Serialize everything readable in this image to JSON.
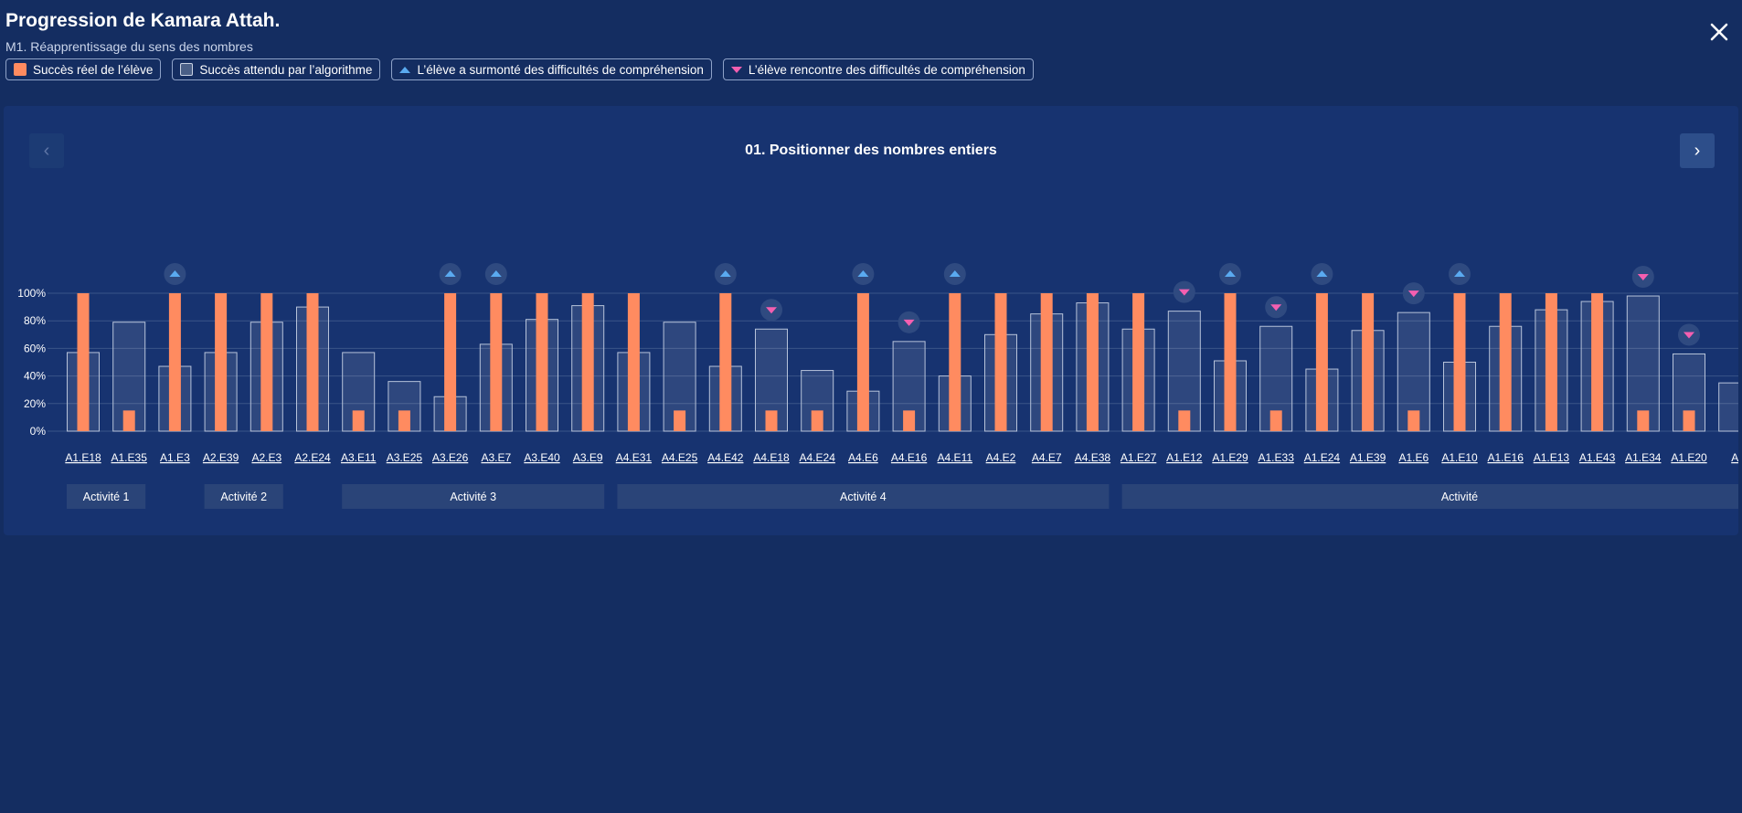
{
  "header": {
    "title": "Progression de Kamara Attah.",
    "subtitle": "M1. Réapprentissage du sens des nombres"
  },
  "legend": {
    "actual": "Succès réel de l’élève",
    "expected": "Succès attendu par l’algorithme",
    "overcame": "L’élève a surmonté des difficultés de compréhension",
    "struggling": "L’élève rencontre des difficultés de compréhension"
  },
  "panel": {
    "title": "01. Positionner des nombres entiers",
    "prev_icon": "chevron-left-icon",
    "next_icon": "chevron-right-icon"
  },
  "colors": {
    "background": "#142d61",
    "panel": "#173370",
    "actual": "#ff8b60",
    "expected_fill": "rgba(255,255,255,0.10)",
    "expected_stroke": "#b7c3da",
    "up_marker": "#5aaaf0",
    "down_marker": "#f45fb0",
    "activity_bg": "#2a4478"
  },
  "chart_data": {
    "type": "bar",
    "ylim": [
      0,
      100
    ],
    "yticks": [
      "0%",
      "20%",
      "40%",
      "60%",
      "80%",
      "100%"
    ],
    "grid": true,
    "categories": [
      "A1.E18",
      "A1.E35",
      "A1.E3",
      "A2.E39",
      "A2.E3",
      "A2.E24",
      "A3.E11",
      "A3.E25",
      "A3.E26",
      "A3.E7",
      "A3.E40",
      "A3.E9",
      "A4.E31",
      "A4.E25",
      "A4.E42",
      "A4.E18",
      "A4.E24",
      "A4.E6",
      "A4.E16",
      "A4.E11",
      "A4.E2",
      "A4.E7",
      "A4.E38",
      "A1.E27",
      "A1.E12",
      "A1.E29",
      "A1.E33",
      "A1.E24",
      "A1.E39",
      "A1.E6",
      "A1.E10",
      "A1.E16",
      "A1.E13",
      "A1.E43",
      "A1.E34",
      "A1.E20",
      "A"
    ],
    "series": [
      {
        "name": "Succès réel de l’élève",
        "values": [
          100,
          15,
          100,
          100,
          100,
          100,
          15,
          15,
          100,
          100,
          100,
          100,
          100,
          15,
          100,
          15,
          15,
          100,
          15,
          100,
          100,
          100,
          100,
          100,
          15,
          100,
          15,
          100,
          100,
          15,
          100,
          100,
          100,
          100,
          15,
          15,
          null
        ]
      },
      {
        "name": "Succès attendu par l’algorithme",
        "values": [
          57,
          79,
          47,
          57,
          79,
          90,
          57,
          36,
          25,
          63,
          81,
          91,
          57,
          79,
          47,
          74,
          44,
          29,
          65,
          40,
          70,
          85,
          93,
          74,
          87,
          51,
          76,
          45,
          73,
          86,
          50,
          76,
          88,
          94,
          98,
          56,
          35
        ]
      }
    ],
    "markers": [
      "",
      "",
      "up",
      "",
      "",
      "",
      "",
      "",
      "up",
      "up",
      "",
      "",
      "",
      "",
      "up",
      "down",
      "",
      "up",
      "down",
      "up",
      "",
      "",
      "",
      "",
      "down",
      "up",
      "down",
      "up",
      "",
      "down",
      "up",
      "",
      "",
      "",
      "down",
      "down",
      ""
    ],
    "activities": [
      {
        "label": "Activité 1",
        "start": 0,
        "end": 1
      },
      {
        "label": "Activité 2",
        "start": 3,
        "end": 4
      },
      {
        "label": "Activité 3",
        "start": 6,
        "end": 11
      },
      {
        "label": "Activité 4",
        "start": 12,
        "end": 22
      },
      {
        "label": "Activité",
        "start": 23,
        "end": 37
      }
    ]
  }
}
